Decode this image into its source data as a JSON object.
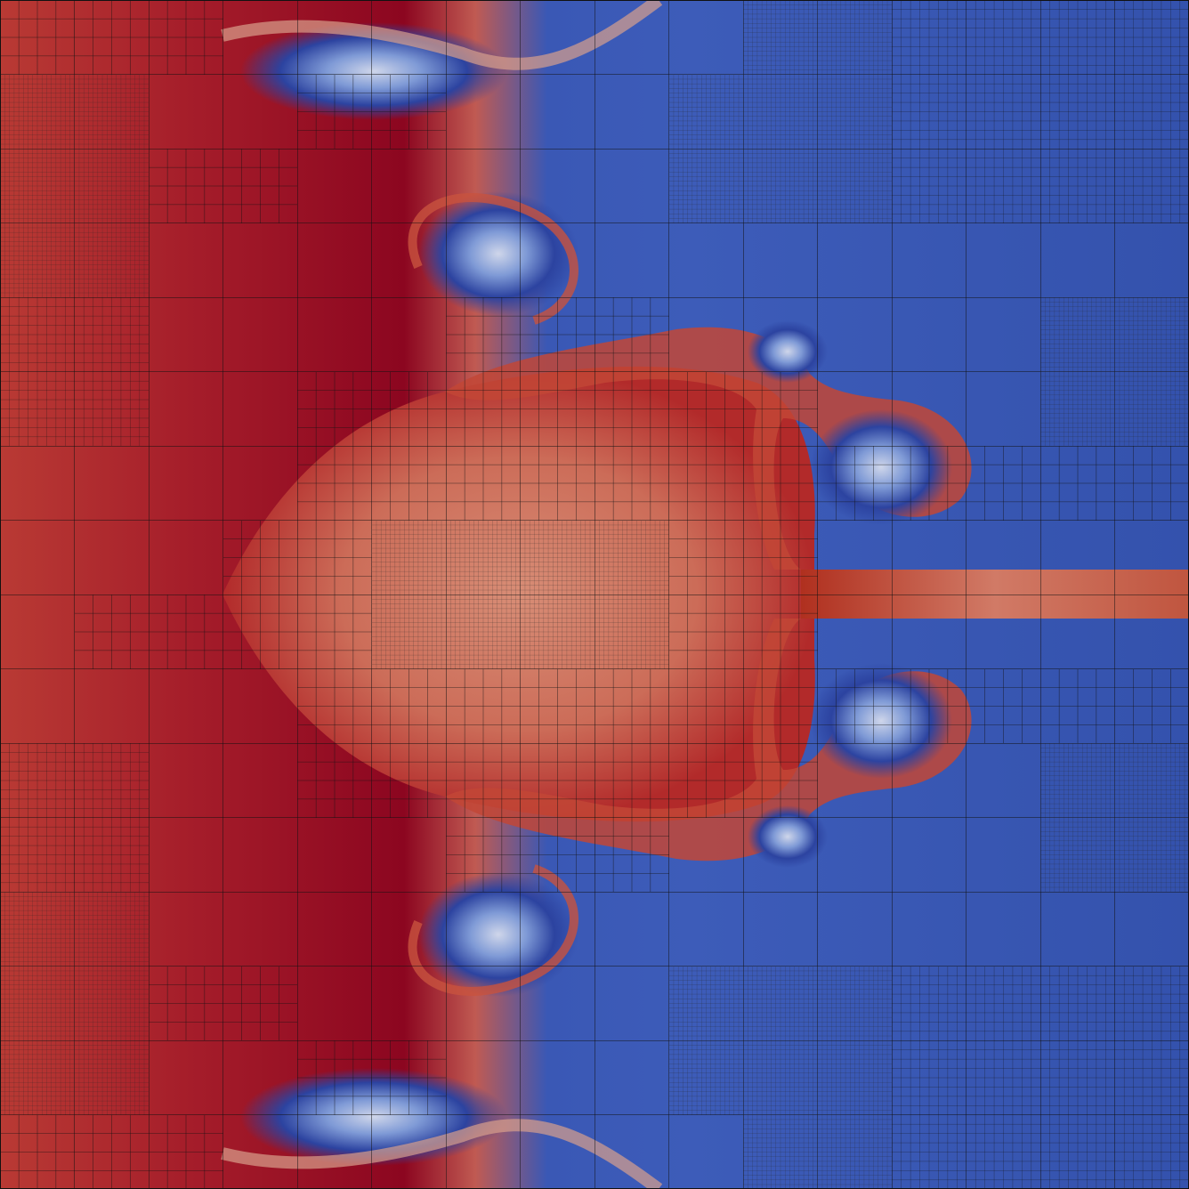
{
  "render": {
    "kind": "scalar field on adaptive quadtree mesh",
    "colormap": "cool-to-warm",
    "colors": {
      "hot": "#8c0620",
      "warm": "#b22a2a",
      "mid_warm": "#d4806a",
      "neutral": "#dcdcdc",
      "mid_cool": "#6f8fd8",
      "cool": "#3c5bb8",
      "cold": "#2a3f9a",
      "grid_line": "#111111"
    },
    "grid": {
      "coarse_divisions": 16,
      "fine_divisions": 64
    }
  }
}
